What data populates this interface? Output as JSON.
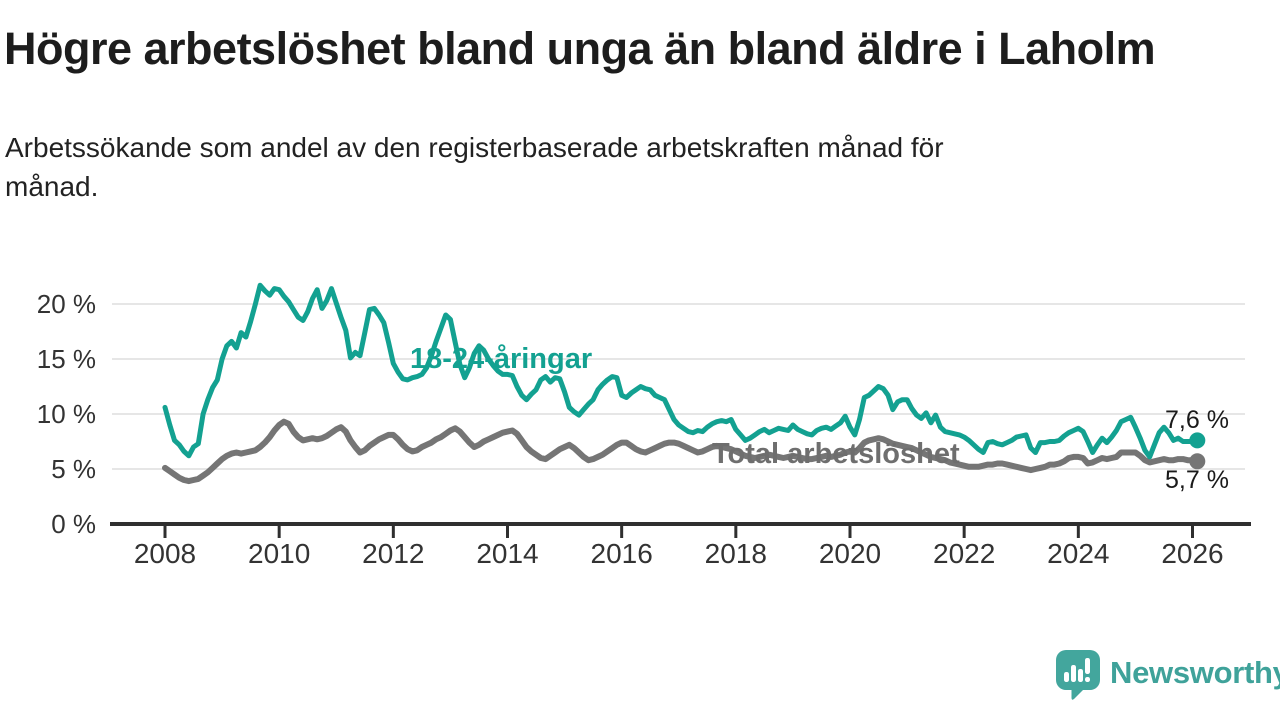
{
  "header": {
    "title": "Högre arbetslöshet bland unga än bland äldre i Laholm",
    "subtitle": "Arbetssökande som andel av den registerbaserade arbetskraften månad för\nmånad."
  },
  "chart_data": {
    "type": "line",
    "title": "Högre arbetslöshet bland unga än bland äldre i Laholm",
    "x_unit": "month",
    "x_start": "2008-01",
    "x_end": "2026-02",
    "ylim": [
      0,
      22
    ],
    "grid": true,
    "legend_position": "inline-labels",
    "colors": {
      "grid": "#dddddd",
      "axis": "#2f2f2f",
      "axis_text": "#333333",
      "background": "#ffffff"
    },
    "y_axis": {
      "ticks": [
        {
          "value": 0,
          "label": "0 %"
        },
        {
          "value": 5,
          "label": "5 %"
        },
        {
          "value": 10,
          "label": "10 %"
        },
        {
          "value": 15,
          "label": "15 %"
        },
        {
          "value": 20,
          "label": "20 %"
        }
      ]
    },
    "x_axis": {
      "ticks": [
        {
          "year": 2008,
          "label": "2008"
        },
        {
          "year": 2010,
          "label": "2010"
        },
        {
          "year": 2012,
          "label": "2012"
        },
        {
          "year": 2014,
          "label": "2014"
        },
        {
          "year": 2016,
          "label": "2016"
        },
        {
          "year": 2018,
          "label": "2018"
        },
        {
          "year": 2020,
          "label": "2020"
        },
        {
          "year": 2022,
          "label": "2022"
        },
        {
          "year": 2024,
          "label": "2024"
        },
        {
          "year": 2026,
          "label": "2026"
        }
      ]
    },
    "series": [
      {
        "id": "total",
        "name": "Total arbetslöshet",
        "color": "#757575",
        "line_width": 6,
        "start_year": 2008,
        "end_label": "5,7 %",
        "values": [
          5.1,
          4.8,
          4.5,
          4.2,
          4.0,
          3.9,
          4.0,
          4.1,
          4.4,
          4.7,
          5.1,
          5.5,
          5.9,
          6.2,
          6.4,
          6.5,
          6.4,
          6.5,
          6.6,
          6.7,
          7.0,
          7.4,
          7.9,
          8.5,
          9.0,
          9.3,
          9.1,
          8.4,
          7.9,
          7.6,
          7.7,
          7.8,
          7.7,
          7.8,
          8.0,
          8.3,
          8.6,
          8.8,
          8.4,
          7.6,
          7.0,
          6.5,
          6.7,
          7.1,
          7.4,
          7.7,
          7.9,
          8.1,
          8.1,
          7.7,
          7.2,
          6.8,
          6.6,
          6.7,
          7.0,
          7.2,
          7.4,
          7.7,
          7.9,
          8.2,
          8.5,
          8.7,
          8.4,
          7.9,
          7.4,
          7.0,
          7.2,
          7.5,
          7.7,
          7.9,
          8.1,
          8.3,
          8.4,
          8.5,
          8.2,
          7.6,
          7.0,
          6.6,
          6.3,
          6.0,
          5.9,
          6.2,
          6.5,
          6.8,
          7.0,
          7.2,
          6.9,
          6.5,
          6.1,
          5.8,
          5.9,
          6.1,
          6.3,
          6.6,
          6.9,
          7.2,
          7.4,
          7.4,
          7.1,
          6.8,
          6.6,
          6.5,
          6.7,
          6.9,
          7.1,
          7.3,
          7.4,
          7.4,
          7.3,
          7.1,
          6.9,
          6.7,
          6.5,
          6.6,
          6.8,
          7.0,
          7.1,
          7.0,
          6.9,
          6.8,
          6.6,
          6.4,
          6.2,
          6.1,
          6.0,
          6.1,
          6.2,
          6.3,
          6.2,
          6.1,
          6.0,
          6.1,
          6.2,
          6.1,
          6.0,
          5.9,
          5.9,
          6.0,
          6.1,
          6.2,
          6.1,
          6.2,
          6.3,
          6.5,
          6.6,
          6.5,
          6.9,
          7.4,
          7.6,
          7.7,
          7.8,
          7.7,
          7.5,
          7.3,
          7.2,
          7.1,
          7.0,
          6.9,
          6.7,
          6.5,
          6.3,
          6.1,
          6.0,
          5.9,
          5.8,
          5.6,
          5.5,
          5.4,
          5.3,
          5.2,
          5.2,
          5.2,
          5.3,
          5.4,
          5.4,
          5.5,
          5.5,
          5.4,
          5.3,
          5.2,
          5.1,
          5.0,
          4.9,
          5.0,
          5.1,
          5.2,
          5.4,
          5.4,
          5.5,
          5.7,
          6.0,
          6.1,
          6.1,
          6.0,
          5.5,
          5.6,
          5.8,
          6.0,
          5.9,
          6.0,
          6.1,
          6.5,
          6.5,
          6.5,
          6.5,
          6.2,
          5.8,
          5.6,
          5.7,
          5.8,
          5.9,
          5.8,
          5.8,
          5.9,
          5.9,
          5.8,
          5.8,
          5.7
        ]
      },
      {
        "id": "youth",
        "name": "18-24-åringar",
        "color": "#13A191",
        "line_width": 5,
        "start_year": 2008,
        "end_label": "7,6 %",
        "values": [
          10.6,
          9.0,
          7.6,
          7.2,
          6.6,
          6.2,
          7.0,
          7.3,
          10.0,
          11.3,
          12.4,
          13.1,
          15.0,
          16.2,
          16.6,
          16.0,
          17.4,
          17.0,
          18.4,
          20.0,
          21.7,
          21.2,
          20.8,
          21.4,
          21.3,
          20.7,
          20.2,
          19.5,
          18.8,
          18.5,
          19.3,
          20.5,
          21.3,
          19.6,
          20.3,
          21.4,
          20.1,
          18.8,
          17.6,
          15.1,
          15.6,
          15.3,
          17.4,
          19.5,
          19.6,
          19.0,
          18.3,
          16.5,
          14.6,
          13.8,
          13.2,
          13.1,
          13.3,
          13.4,
          13.6,
          14.2,
          15.3,
          16.6,
          17.8,
          19.0,
          18.6,
          16.5,
          14.5,
          13.3,
          14.2,
          15.5,
          16.2,
          15.8,
          15.0,
          14.4,
          13.9,
          13.6,
          13.6,
          13.5,
          12.5,
          11.7,
          11.3,
          11.8,
          12.2,
          13.1,
          13.4,
          12.9,
          13.3,
          13.2,
          12.0,
          10.6,
          10.2,
          9.9,
          10.4,
          10.9,
          11.3,
          12.2,
          12.7,
          13.1,
          13.4,
          13.3,
          11.7,
          11.5,
          11.9,
          12.2,
          12.5,
          12.3,
          12.2,
          11.7,
          11.5,
          11.3,
          10.4,
          9.5,
          9.0,
          8.7,
          8.4,
          8.3,
          8.5,
          8.4,
          8.8,
          9.1,
          9.3,
          9.4,
          9.3,
          9.5,
          8.6,
          8.1,
          7.6,
          7.8,
          8.1,
          8.4,
          8.6,
          8.3,
          8.5,
          8.7,
          8.6,
          8.5,
          9.0,
          8.6,
          8.4,
          8.2,
          8.1,
          8.5,
          8.7,
          8.8,
          8.6,
          8.9,
          9.2,
          9.8,
          8.8,
          8.1,
          9.5,
          11.5,
          11.7,
          12.1,
          12.5,
          12.3,
          11.7,
          10.4,
          11.1,
          11.3,
          11.3,
          10.5,
          9.9,
          9.6,
          10.1,
          9.2,
          9.9,
          8.8,
          8.4,
          8.3,
          8.2,
          8.1,
          7.9,
          7.6,
          7.2,
          6.8,
          6.5,
          7.4,
          7.5,
          7.3,
          7.2,
          7.4,
          7.6,
          7.9,
          8.0,
          8.1,
          6.9,
          6.5,
          7.4,
          7.4,
          7.5,
          7.5,
          7.6,
          8.0,
          8.3,
          8.5,
          8.7,
          8.4,
          7.5,
          6.5,
          7.2,
          7.8,
          7.4,
          7.9,
          8.5,
          9.3,
          9.5,
          9.7,
          8.8,
          7.8,
          6.7,
          6.1,
          7.2,
          8.3,
          8.8,
          8.3,
          7.6,
          7.8,
          7.5,
          7.5,
          7.5,
          7.6
        ]
      }
    ]
  },
  "footer": {
    "brand": "Newsworthy",
    "brand_color": "#3FA29A",
    "logo_bubble_color": "#43A69D"
  }
}
